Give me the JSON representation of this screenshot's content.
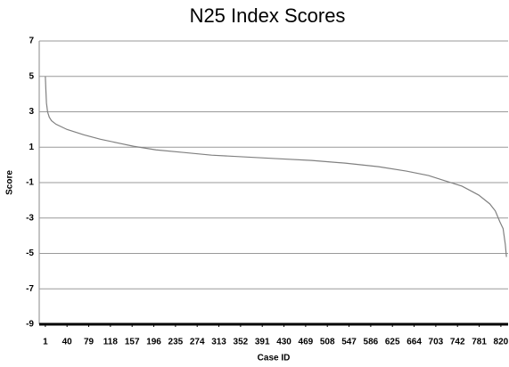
{
  "chart_data": {
    "type": "line",
    "title": "N25 Index Scores",
    "x_label": "Case ID",
    "y_label": "Score",
    "x": [
      1,
      2,
      3,
      5,
      8,
      12,
      20,
      40,
      70,
      100,
      130,
      160,
      200,
      250,
      300,
      360,
      420,
      480,
      540,
      600,
      650,
      690,
      720,
      750,
      780,
      800,
      810,
      818,
      824,
      828,
      830
    ],
    "series": [
      {
        "color": "#808080",
        "values": [
          5,
          4.2,
          3.5,
          3.0,
          2.7,
          2.5,
          2.3,
          2.0,
          1.7,
          1.45,
          1.25,
          1.05,
          0.85,
          0.7,
          0.55,
          0.45,
          0.35,
          0.25,
          0.1,
          -0.1,
          -0.35,
          -0.6,
          -0.9,
          -1.2,
          -1.7,
          -2.2,
          -2.6,
          -3.2,
          -3.6,
          -4.5,
          -5.2
        ]
      }
    ],
    "xlim": [
      -10,
      833
    ],
    "xticks": [
      1,
      40,
      79,
      118,
      157,
      196,
      235,
      274,
      313,
      352,
      391,
      430,
      469,
      508,
      547,
      586,
      625,
      664,
      703,
      742,
      781,
      820
    ],
    "ylim": [
      -9,
      7
    ],
    "yticks": [
      -9,
      -7,
      -5,
      -3,
      -1,
      1,
      3,
      5,
      7
    ],
    "grid": true
  }
}
